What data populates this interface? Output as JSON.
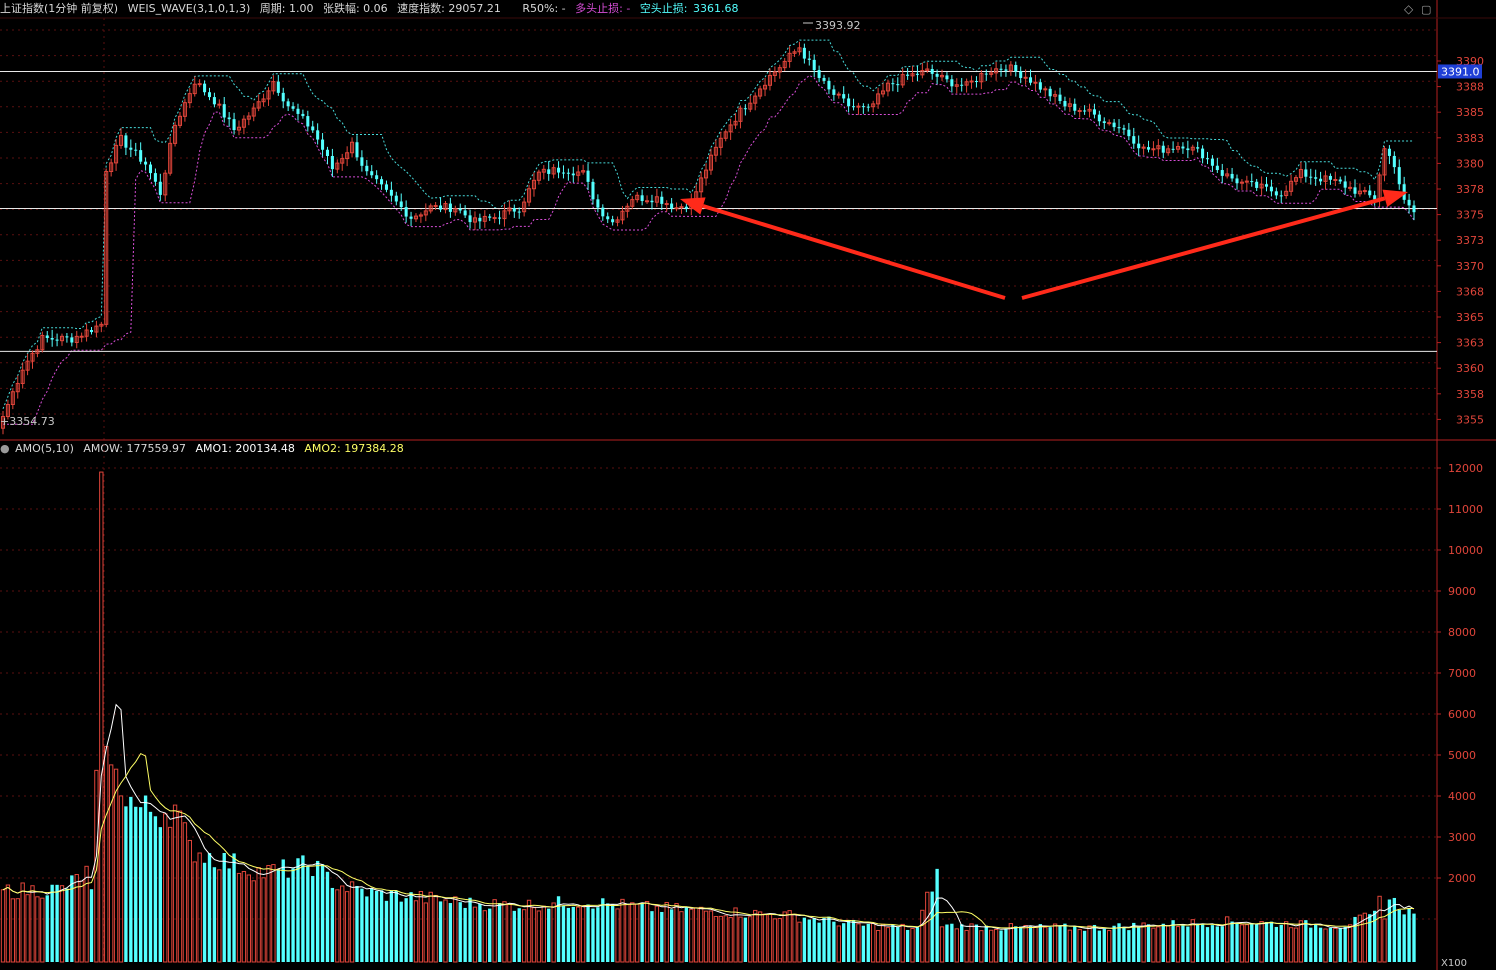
{
  "header": {
    "symbol": "上证指数(1分钟 前复权)",
    "indicator": "WEIS_WAVE(3,1,0,1,3)",
    "period": "周期: 1.00",
    "change": "张跌幅: 0.06",
    "speed": "速度指数: 29057.21",
    "r50": "R50%: -",
    "long_stop": "多头止损: -",
    "short_stop_label": "空头止损:",
    "short_stop_value": "3361.68"
  },
  "volume_header": {
    "name": "AMO(5,10)",
    "amow": "AMOW: 177559.97",
    "amo1": "AMO1: 200134.48",
    "amo2": "AMO2: 197384.28"
  },
  "price_axis": {
    "ticks": [
      "3390",
      "3388",
      "3385",
      "3383",
      "3380",
      "3378",
      "3375",
      "3373",
      "3370",
      "3368",
      "3365",
      "3363",
      "3360",
      "3358",
      "3355"
    ],
    "current_value": "3391.0"
  },
  "volume_axis": {
    "ticks": [
      "12000",
      "11000",
      "10000",
      "9000",
      "8000",
      "7000",
      "6000",
      "5000",
      "4000",
      "3000",
      "2000"
    ],
    "unit": "X100"
  },
  "labels": {
    "high": "3393.92",
    "low": "3354.73",
    "low_prefix": "+"
  },
  "colors": {
    "up": "#e0453a",
    "down": "#54ffff",
    "long_stop": "#d84ed8",
    "short_stop": "#54ffff",
    "amo1": "#ffffff",
    "amo2": "#ffff66",
    "arrow": "#ff2a1a"
  },
  "chart_data": [
    {
      "type": "candlestick",
      "title": "上证指数(1分钟 前复权)",
      "ylim": [
        3353.5,
        3396.5
      ],
      "horizontal_lines": [
        3391.0,
        3376.9,
        3362.2
      ],
      "anchors": [
        {
          "i": 0,
          "c": 3355.5
        },
        {
          "i": 4,
          "c": 3360.5
        },
        {
          "i": 8,
          "c": 3363.5
        },
        {
          "i": 14,
          "c": 3363.5
        },
        {
          "i": 20,
          "c": 3365.0
        },
        {
          "i": 21,
          "c": 3381.0
        },
        {
          "i": 24,
          "c": 3384.0
        },
        {
          "i": 29,
          "c": 3381.5
        },
        {
          "i": 32,
          "c": 3378.5
        },
        {
          "i": 35,
          "c": 3385.5
        },
        {
          "i": 39,
          "c": 3390.0
        },
        {
          "i": 43,
          "c": 3388.0
        },
        {
          "i": 47,
          "c": 3385.0
        },
        {
          "i": 51,
          "c": 3387.0
        },
        {
          "i": 55,
          "c": 3390.0
        },
        {
          "i": 58,
          "c": 3387.5
        },
        {
          "i": 63,
          "c": 3385.0
        },
        {
          "i": 67,
          "c": 3381.0
        },
        {
          "i": 71,
          "c": 3383.5
        },
        {
          "i": 74,
          "c": 3380.5
        },
        {
          "i": 79,
          "c": 3378.0
        },
        {
          "i": 83,
          "c": 3376.0
        },
        {
          "i": 87,
          "c": 3377.0
        },
        {
          "i": 92,
          "c": 3377.0
        },
        {
          "i": 96,
          "c": 3375.5
        },
        {
          "i": 100,
          "c": 3376.0
        },
        {
          "i": 105,
          "c": 3377.0
        },
        {
          "i": 109,
          "c": 3380.5
        },
        {
          "i": 114,
          "c": 3381.0
        },
        {
          "i": 118,
          "c": 3380.5
        },
        {
          "i": 121,
          "c": 3377.0
        },
        {
          "i": 124,
          "c": 3375.5
        },
        {
          "i": 128,
          "c": 3378.0
        },
        {
          "i": 133,
          "c": 3378.0
        },
        {
          "i": 137,
          "c": 3377.0
        },
        {
          "i": 140,
          "c": 3377.5
        },
        {
          "i": 143,
          "c": 3381.0
        },
        {
          "i": 147,
          "c": 3385.0
        },
        {
          "i": 151,
          "c": 3387.5
        },
        {
          "i": 155,
          "c": 3390.0
        },
        {
          "i": 159,
          "c": 3392.0
        },
        {
          "i": 162,
          "c": 3393.5
        },
        {
          "i": 165,
          "c": 3391.0
        },
        {
          "i": 168,
          "c": 3389.0
        },
        {
          "i": 172,
          "c": 3387.5
        },
        {
          "i": 176,
          "c": 3387.0
        },
        {
          "i": 180,
          "c": 3389.5
        },
        {
          "i": 184,
          "c": 3390.5
        },
        {
          "i": 188,
          "c": 3391.0
        },
        {
          "i": 192,
          "c": 3390.0
        },
        {
          "i": 196,
          "c": 3389.5
        },
        {
          "i": 200,
          "c": 3391.0
        },
        {
          "i": 204,
          "c": 3391.5
        },
        {
          "i": 208,
          "c": 3390.5
        },
        {
          "i": 212,
          "c": 3389.0
        },
        {
          "i": 216,
          "c": 3387.5
        },
        {
          "i": 220,
          "c": 3387.0
        },
        {
          "i": 224,
          "c": 3386.0
        },
        {
          "i": 228,
          "c": 3385.0
        },
        {
          "i": 232,
          "c": 3383.0
        },
        {
          "i": 236,
          "c": 3383.0
        },
        {
          "i": 240,
          "c": 3383.5
        },
        {
          "i": 244,
          "c": 3382.5
        },
        {
          "i": 248,
          "c": 3380.5
        },
        {
          "i": 252,
          "c": 3379.5
        },
        {
          "i": 256,
          "c": 3379.0
        },
        {
          "i": 260,
          "c": 3378.5
        },
        {
          "i": 264,
          "c": 3380.5
        },
        {
          "i": 268,
          "c": 3380.0
        },
        {
          "i": 272,
          "c": 3379.5
        },
        {
          "i": 276,
          "c": 3378.5
        },
        {
          "i": 279,
          "c": 3378.0
        },
        {
          "i": 281,
          "c": 3383.0
        },
        {
          "i": 283,
          "c": 3381.5
        },
        {
          "i": 285,
          "c": 3377.5
        },
        {
          "i": 287,
          "c": 3376.5
        }
      ]
    },
    {
      "type": "bar",
      "title": "AMO(5,10)",
      "unit": "X100",
      "ylim": [
        0,
        12500
      ],
      "anchors": [
        {
          "i": 0,
          "v": 1750
        },
        {
          "i": 12,
          "v": 1800
        },
        {
          "i": 17,
          "v": 2200
        },
        {
          "i": 18,
          "v": 1700
        },
        {
          "i": 19,
          "v": 4300
        },
        {
          "i": 20,
          "v": 12100
        },
        {
          "i": 21,
          "v": 5900
        },
        {
          "i": 22,
          "v": 4600
        },
        {
          "i": 24,
          "v": 4400
        },
        {
          "i": 27,
          "v": 3800
        },
        {
          "i": 32,
          "v": 3700
        },
        {
          "i": 35,
          "v": 3800
        },
        {
          "i": 38,
          "v": 2800
        },
        {
          "i": 45,
          "v": 2500
        },
        {
          "i": 53,
          "v": 2200
        },
        {
          "i": 63,
          "v": 2400
        },
        {
          "i": 68,
          "v": 1900
        },
        {
          "i": 75,
          "v": 1700
        },
        {
          "i": 84,
          "v": 1600
        },
        {
          "i": 95,
          "v": 1450
        },
        {
          "i": 106,
          "v": 1400
        },
        {
          "i": 118,
          "v": 1500
        },
        {
          "i": 130,
          "v": 1350
        },
        {
          "i": 145,
          "v": 1250
        },
        {
          "i": 160,
          "v": 1150
        },
        {
          "i": 175,
          "v": 900
        },
        {
          "i": 186,
          "v": 830
        },
        {
          "i": 190,
          "v": 2300
        },
        {
          "i": 191,
          "v": 900
        },
        {
          "i": 205,
          "v": 850
        },
        {
          "i": 222,
          "v": 850
        },
        {
          "i": 240,
          "v": 950
        },
        {
          "i": 249,
          "v": 1000
        },
        {
          "i": 260,
          "v": 950
        },
        {
          "i": 272,
          "v": 900
        },
        {
          "i": 279,
          "v": 1150
        },
        {
          "i": 280,
          "v": 1550
        },
        {
          "i": 281,
          "v": 1200
        },
        {
          "i": 282,
          "v": 1550
        },
        {
          "i": 287,
          "v": 1150
        }
      ],
      "series": [
        {
          "name": "AMO1"
        },
        {
          "name": "AMO2"
        }
      ]
    }
  ]
}
